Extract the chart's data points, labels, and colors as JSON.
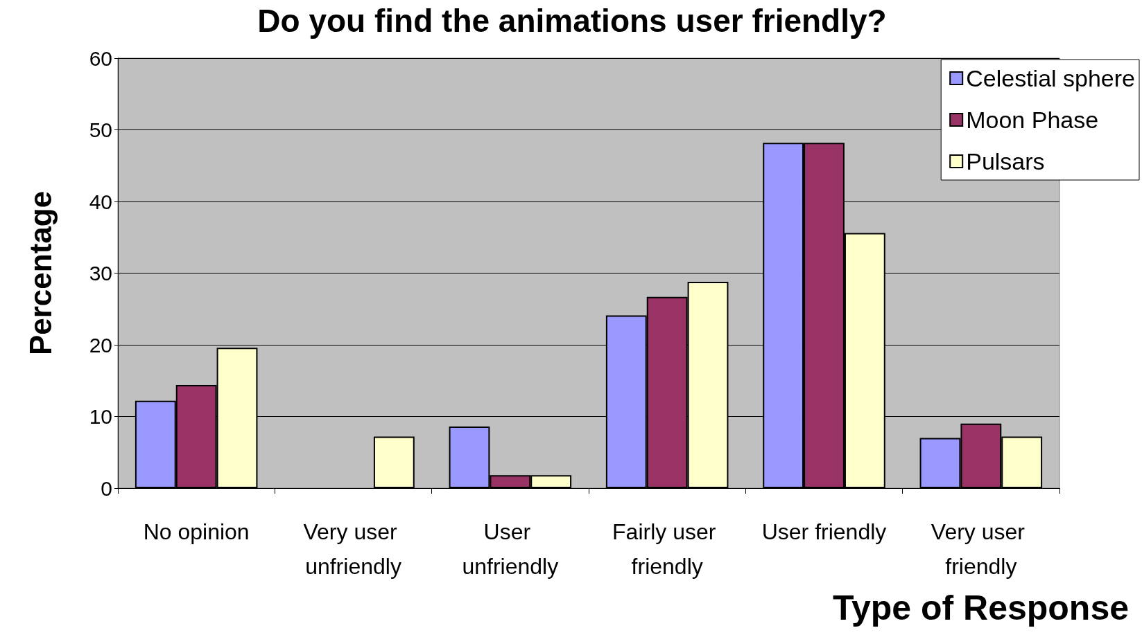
{
  "chart_data": {
    "type": "bar",
    "title": "Do you find the animations user friendly?",
    "xlabel": "Type of Response",
    "ylabel": "Percentage",
    "categories": [
      "No opinion",
      "Very user unfriendly",
      "User unfriendly",
      "Fairly user friendly",
      "User friendly",
      "Very user friendly"
    ],
    "series": [
      {
        "name": "Celestial sphere",
        "color": "#9999ff",
        "values": [
          12.2,
          0,
          8.6,
          24.1,
          48.2,
          7.0
        ]
      },
      {
        "name": "Moon Phase",
        "color": "#993366",
        "values": [
          14.4,
          0,
          1.8,
          26.7,
          48.2,
          9.0
        ]
      },
      {
        "name": "Pulsars",
        "color": "#ffffcc",
        "values": [
          19.6,
          7.2,
          1.8,
          28.8,
          35.6,
          7.2
        ]
      }
    ],
    "ylim": [
      0,
      60
    ],
    "yticks": [
      0,
      10,
      20,
      30,
      40,
      50,
      60
    ],
    "grid": "y",
    "legend": "top right"
  }
}
